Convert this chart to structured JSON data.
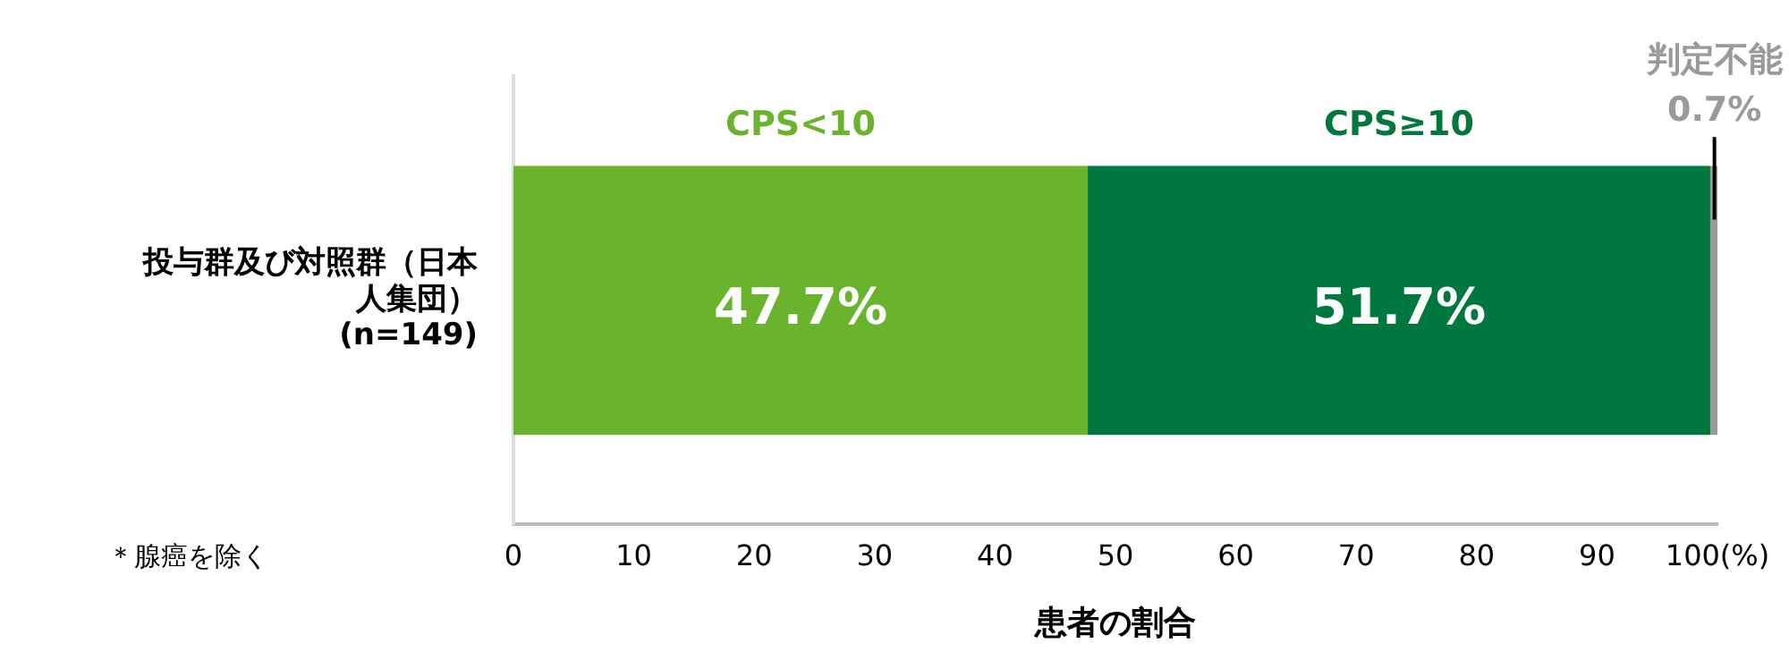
{
  "chart_data": {
    "type": "bar",
    "orientation": "horizontal",
    "stacked": true,
    "categories": [
      "投与群及び対照群（日本人集団）(n=149)"
    ],
    "series": [
      {
        "name": "CPS<10",
        "color": "#6ab42d",
        "values": [
          47.7
        ],
        "value_labels": [
          "47.7%"
        ]
      },
      {
        "name": "CPS≥10",
        "color": "#00773c",
        "values": [
          51.7
        ],
        "value_labels": [
          "51.7%"
        ]
      },
      {
        "name": "判定不能",
        "color": "#9a9a9a",
        "values": [
          0.7
        ],
        "value_labels": [
          "0.7%"
        ]
      }
    ],
    "xlim": [
      0,
      100
    ],
    "xticks": [
      0,
      10,
      20,
      30,
      40,
      50,
      60,
      70,
      80,
      90,
      {
        "value": 100,
        "label": "100(%)"
      }
    ],
    "xlabel": "患者の割合",
    "annotations": [
      "＊腺癌を除く"
    ],
    "grid": false,
    "legend": false
  }
}
